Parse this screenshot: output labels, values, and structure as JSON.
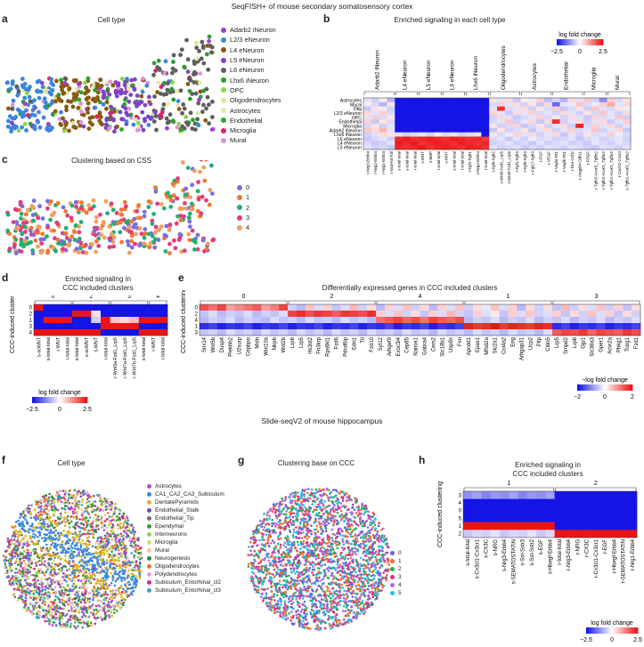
{
  "title_top": "SeqFISH+ of mouse secondary somatosensory cortex",
  "title_mid": "Slide-seqV2 of mouse hippocampus",
  "panels": {
    "a": {
      "label": "a",
      "title": "Cell type"
    },
    "b": {
      "label": "b",
      "title": "Enriched signaling in each cell type"
    },
    "c": {
      "label": "c",
      "title": "Clustering based on CSS"
    },
    "d": {
      "label": "d",
      "title_line1": "Enriched signaling in",
      "title_line2": "CCC included clusters"
    },
    "e": {
      "label": "e",
      "title": "Differentially expressed genes in CCC included clusters"
    },
    "f": {
      "label": "f",
      "title": "Cell type"
    },
    "g": {
      "label": "g",
      "title": "Clustering base on CCC"
    },
    "h": {
      "label": "h",
      "title_line1": "Enriched signaling in",
      "title_line2": "CCC included clusters"
    }
  },
  "legend_a": [
    {
      "label": "Adarb2 iNeuron",
      "color": "#9b3fd0"
    },
    {
      "label": "L2/3 eNeuron",
      "color": "#3c84e0"
    },
    {
      "label": "L4 eNeuron",
      "color": "#8a5a10"
    },
    {
      "label": "L5 eNeuron",
      "color": "#7d42c8"
    },
    {
      "label": "L6 eNeuron",
      "color": "#5e5e5e"
    },
    {
      "label": "Lhx6 iNeuron",
      "color": "#2e9c2e"
    },
    {
      "label": "OPC",
      "color": "#88d848"
    },
    {
      "label": "Oligodendrocytes",
      "color": "#d8e89a"
    },
    {
      "label": "Astrocytes",
      "color": "#e8e8a8"
    },
    {
      "label": "Endothelial",
      "color": "#2ea62e"
    },
    {
      "label": "Microglia",
      "color": "#e02060"
    },
    {
      "label": "Mural",
      "color": "#e090e0"
    }
  ],
  "legend_c": [
    {
      "label": "0",
      "color": "#7a6ee0"
    },
    {
      "label": "1",
      "color": "#f07830"
    },
    {
      "label": "2",
      "color": "#20b070"
    },
    {
      "label": "3",
      "color": "#e03c80"
    },
    {
      "label": "4",
      "color": "#f0a060"
    }
  ],
  "legend_f": [
    {
      "label": "Astrocytes",
      "color": "#c040e0"
    },
    {
      "label": "CA1_CA2_CA3_Subiculum",
      "color": "#3a88e0"
    },
    {
      "label": "DentatePyramids",
      "color": "#e0b020"
    },
    {
      "label": "Endothelial_Stalk",
      "color": "#7848c0"
    },
    {
      "label": "Endothelial_Tip",
      "color": "#707070"
    },
    {
      "label": "Ependymal",
      "color": "#30a030"
    },
    {
      "label": "Interneurons",
      "color": "#90d050"
    },
    {
      "label": "Microglia",
      "color": "#d0e070"
    },
    {
      "label": "Mural",
      "color": "#f0c890"
    },
    {
      "label": "Neurogenesis",
      "color": "#209040"
    },
    {
      "label": "Oligodendrocytes",
      "color": "#f07020"
    },
    {
      "label": "Polydendrocytes",
      "color": "#e0a0e0"
    },
    {
      "label": "Subiculum_Entorhinal_cl2",
      "color": "#e020a0"
    },
    {
      "label": "Subiculum_Entorhinal_cl3",
      "color": "#40a0c0"
    }
  ],
  "legend_g": [
    {
      "label": "0",
      "color": "#6a60e0"
    },
    {
      "label": "1",
      "color": "#f07028"
    },
    {
      "label": "2",
      "color": "#20b060"
    },
    {
      "label": "3",
      "color": "#e03080"
    },
    {
      "label": "4",
      "color": "#b068e0"
    },
    {
      "label": "5",
      "color": "#20c0e0"
    }
  ],
  "heatmap_b": {
    "colorbar_title": "log fold change",
    "colorbar_ticks": [
      "−2.5",
      "0",
      "2.5"
    ],
    "groups": [
      "Adarb2 iNeuron",
      "L4 eNeuron",
      "L5 eNeuron",
      "L6 eNeuron",
      "Lhx6 iNeuron",
      "Oligodendrocytes",
      "Astrocytes",
      "Endothelial",
      "Microglia",
      "Mural"
    ],
    "rows": [
      "Astrocytes",
      "Mural",
      "Olig",
      "L2/3 eNeuron",
      "OPC",
      "Endothelial",
      "Microglia",
      "Adarb2 iNeuron",
      "Lhx6 iNeuron",
      "L6 eNeuron",
      "L4 eNeuron",
      "L5 eNeuron"
    ],
    "cols": [
      "r-Nrg3-Erbb4",
      "r-Nrg2-Erbb4",
      "r-Nrg1-Erbb4",
      "r-total-Kit-Kitl",
      "s-total-total",
      "s-total-total",
      "r-total-total",
      "s-WNT",
      "s-BMP",
      "r-total-total",
      "s-WNT",
      "s-total-total",
      "r-total-total",
      "r-Fgf1-Fgfr1",
      "s-Nrg2-Erbb4",
      "r-total-total",
      "r-Fgf9-Fgfr2",
      "s-Wnt5-Fzd1_Lrp5",
      "s-Wnt6-Fzd1_Lrp5",
      "r-Fgf1-Fgfr3",
      "r-Fgf9-Fgfr3",
      "r-Fgf17-Fgfr3",
      "r-EGF",
      "r-VEGF",
      "r-Vegfa-Flt1",
      "r-Vegfb-Flt1",
      "r-Il34-Csf1r",
      "r-Angptl4-Cdh11",
      "r-PDGF",
      "r-Tgfb3-Acvrl1_Tgfbr2",
      "r-Tgfb2-Acvrl1_Tgfbr2",
      "r-Tgfb1-Acvrl1_Tgfbr2",
      "r-Cxcl12-Cxcr4",
      "s-Tgfb1-Acvrl1_Tgfbr2"
    ],
    "values": [
      [
        -0.3,
        -0.5,
        0.2,
        -0.8,
        -2.5,
        -2.5,
        -2.5,
        -2.5,
        -2.5,
        -2.5,
        -2.5,
        -2.5,
        -2.5,
        -2.5,
        -2.5,
        -2.5,
        0.3,
        -0.3,
        0.4,
        -0.6,
        0.2,
        -0.2,
        0.5,
        -0.7,
        -0.4,
        -0.8,
        0.4,
        -0.3,
        0.6,
        -0.5,
        -1.2,
        0.5,
        -0.4,
        0.3
      ],
      [
        0.2,
        -0.4,
        -0.8,
        0.3,
        -2.5,
        -2.5,
        -2.5,
        -2.5,
        -2.5,
        -2.5,
        -2.5,
        -2.5,
        -2.5,
        -2.5,
        -2.5,
        -2.5,
        -0.4,
        0.5,
        -0.3,
        0.4,
        -0.5,
        0.3,
        -0.6,
        0.4,
        -1.6,
        -0.3,
        -0.2,
        0.6,
        -0.4,
        -0.2,
        0.5,
        0.9,
        -0.3,
        0.4
      ],
      [
        -0.6,
        0.3,
        -0.2,
        -0.5,
        -2.5,
        -2.5,
        -2.5,
        -2.5,
        -2.5,
        -2.5,
        -2.5,
        -2.5,
        -2.5,
        -2.5,
        -2.5,
        -2.5,
        -0.3,
        2.2,
        -0.4,
        -0.3,
        0.4,
        -0.5,
        0.3,
        -0.4,
        0.5,
        -0.6,
        -0.4,
        0.3,
        -0.5,
        0.6,
        -0.3,
        -0.4,
        0.3,
        -0.2
      ],
      [
        0.4,
        -0.3,
        0.5,
        -0.4,
        -2.5,
        -2.5,
        -2.5,
        -2.5,
        -2.5,
        -2.5,
        -2.5,
        -2.5,
        -2.5,
        -2.5,
        -2.5,
        -2.5,
        0.5,
        -0.3,
        -0.6,
        0.4,
        -0.3,
        0.5,
        -0.4,
        -0.3,
        -0.5,
        0.4,
        -0.3,
        -0.5,
        0.3,
        -0.4,
        0.6,
        -0.3,
        -0.5,
        0.4
      ],
      [
        -0.3,
        0.5,
        -0.4,
        0.3,
        -2.5,
        -2.5,
        -2.5,
        -2.5,
        -2.5,
        -2.5,
        -2.5,
        -2.5,
        -2.5,
        -2.5,
        -2.5,
        -2.5,
        -0.5,
        0.4,
        -0.3,
        -0.6,
        -0.4,
        -0.3,
        0.5,
        -0.4,
        0.3,
        -0.5,
        0.4,
        -0.3,
        -0.6,
        0.5,
        -0.4,
        -0.3,
        0.6,
        -0.5
      ],
      [
        0.5,
        -0.6,
        0.3,
        -0.4,
        -2.5,
        -2.5,
        -2.5,
        -2.5,
        -2.5,
        -2.5,
        -2.5,
        -2.5,
        -2.5,
        -2.5,
        -2.5,
        -2.5,
        -0.4,
        -0.3,
        0.6,
        -0.5,
        -0.3,
        0.4,
        -0.6,
        0.4,
        2.2,
        -0.5,
        -0.3,
        0.4,
        -0.5,
        -0.3,
        0.4,
        -0.6,
        -0.3,
        0.5
      ],
      [
        -0.4,
        0.3,
        -0.5,
        -0.3,
        -2.5,
        -2.5,
        -2.5,
        -2.5,
        -2.5,
        -2.5,
        -2.5,
        -2.5,
        -2.5,
        -2.5,
        -2.5,
        -2.5,
        0.3,
        -0.5,
        -0.4,
        0.5,
        -0.6,
        -0.4,
        0.3,
        -0.5,
        -0.3,
        0.4,
        -0.5,
        2.3,
        -0.4,
        0.5,
        -0.3,
        0.4,
        -0.5,
        -0.3
      ],
      [
        0.6,
        0.4,
        0.8,
        -0.3,
        -2.5,
        -2.5,
        -2.5,
        -2.5,
        -2.5,
        -2.5,
        -2.5,
        -2.5,
        -2.5,
        -2.5,
        -2.5,
        -2.5,
        -0.6,
        0.3,
        -0.5,
        -0.4,
        0.3,
        -0.6,
        -0.3,
        0.4,
        -0.5,
        -0.3,
        0.5,
        -0.4,
        -0.3,
        0.6,
        -0.5,
        -0.3,
        0.4,
        -0.6
      ],
      [
        -0.5,
        -0.3,
        0.4,
        0.3,
        -0.3,
        -0.5,
        -0.4,
        -0.3,
        -0.5,
        -0.2,
        -0.4,
        -0.3,
        -0.5,
        -0.4,
        -0.3,
        -2.5,
        0.3,
        -0.4,
        -0.2,
        0.5,
        -0.3,
        0.4,
        -0.5,
        -0.3,
        0.4,
        -0.6,
        -0.3,
        -0.5,
        0.3,
        -0.4,
        -0.3,
        0.5,
        -0.2,
        -0.4
      ],
      [
        -0.6,
        -0.4,
        -0.3,
        -0.5,
        2.3,
        2.4,
        2.2,
        2.3,
        2.4,
        2.3,
        2.2,
        2.4,
        2.3,
        2.2,
        2.3,
        2.1,
        -0.4,
        -0.3,
        -0.6,
        -0.3,
        -0.5,
        -0.2,
        -0.4,
        -0.3,
        -0.5,
        -0.4,
        -0.3,
        -0.6,
        -0.4,
        -0.3,
        -0.5,
        -0.4,
        -0.3,
        -0.5
      ],
      [
        -0.4,
        -0.6,
        -0.5,
        -0.3,
        2.4,
        2.3,
        2.4,
        2.2,
        2.3,
        2.4,
        2.3,
        2.2,
        2.4,
        2.3,
        2.2,
        2.3,
        -0.5,
        -0.4,
        -0.3,
        -0.5,
        -0.4,
        -0.6,
        -0.3,
        -0.5,
        -0.4,
        -0.3,
        -0.5,
        -0.4,
        -0.6,
        -0.3,
        -0.4,
        -0.5,
        -0.3,
        -0.4
      ],
      [
        -0.3,
        -0.5,
        -0.4,
        -0.6,
        2.3,
        2.2,
        2.3,
        2.4,
        2.2,
        2.3,
        2.4,
        2.3,
        2.2,
        2.4,
        2.3,
        2.2,
        -0.3,
        -0.5,
        -0.4,
        -0.3,
        -0.6,
        -0.4,
        -0.5,
        -0.3,
        -0.4,
        -0.5,
        -0.3,
        -0.4,
        -0.5,
        -0.6,
        -0.3,
        -0.4,
        -0.5,
        -0.3
      ]
    ]
  },
  "heatmap_d": {
    "ylabel": "CCC-induced clustering",
    "group_labels": [
      "0",
      "2",
      "3",
      "4"
    ],
    "rows": [
      "0",
      "2",
      "1",
      "3",
      "4"
    ],
    "cols": [
      "s-ncWNT",
      "s-total-total",
      "r-WNT",
      "r-total-total",
      "s-total-total",
      "s-ncWNT",
      "s-WNT",
      "r-total-total",
      "r-Wnt3a-Fzd1_Lrp5",
      "r-Wnt7a-Fzd1_Lrp5",
      "r-Wnt7b-Fzd1_Lrp5",
      "s-total-total",
      "r-WNT",
      "r-total-total"
    ],
    "values": [
      [
        2.5,
        -2.5,
        -2.5,
        -2.5,
        -2.5,
        -2.5,
        -2.5,
        -2.5,
        -2.5,
        -2.5,
        -2.5,
        -2.5,
        -2.5,
        -2.5
      ],
      [
        -2.5,
        -2.5,
        -2.5,
        -2.5,
        2.5,
        2.5,
        0.3,
        -2.5,
        -2.5,
        -2.5,
        -2.5,
        -2.5,
        -2.5,
        -2.5
      ],
      [
        -2.5,
        2.5,
        2.5,
        2.5,
        -2.5,
        -2.5,
        -0.5,
        2.5,
        0.6,
        0.4,
        0.7,
        2.5,
        2.5,
        2.5
      ],
      [
        -2.5,
        -2.5,
        -2.5,
        -2.5,
        -2.5,
        -2.5,
        -2.5,
        2.5,
        2.5,
        2.5,
        2.5,
        -2.5,
        -2.5,
        -2.5
      ],
      [
        2.5,
        2.5,
        2.5,
        2.5,
        2.5,
        2.5,
        2.5,
        -2.5,
        -2.5,
        -2.5,
        -2.5,
        2.5,
        2.5,
        2.5
      ]
    ],
    "colorbar_title": "log fold change",
    "colorbar_ticks": [
      "−2.5",
      "0",
      "2.5"
    ]
  },
  "heatmap_e": {
    "ylabel": "CCC-induced clustering",
    "group_labels": [
      "0",
      "2",
      "4",
      "1",
      "3"
    ],
    "rows": [
      "0",
      "2",
      "4",
      "1",
      "3"
    ],
    "cols": [
      "Snx14",
      "Wnt5b",
      "Dusp4",
      "Plekhh2",
      "U2surp",
      "Cepbpo",
      "Msln",
      "Wnt10a",
      "Nlrp6",
      "Wnt2b",
      "Lrp6",
      "Lrp5",
      "Hs3st2",
      "Fn3krp",
      "Rps6kl1",
      "Fzd6",
      "Pdcd6ip",
      "Edn1",
      "Ttl",
      "Fzd10",
      "Syt12",
      "Arhgef9",
      "Exoc3l4",
      "Cep85",
      "Nanos1",
      "Gabra4",
      "Cers2",
      "Slc18b1",
      "Usp9x",
      "Fxn",
      "Apcdd1",
      "Epas1",
      "Mfsd2a",
      "Slc2a1",
      "Col4a2",
      "Eng",
      "Arhgap31",
      "Ucp2",
      "Pltp",
      "Cldn5",
      "Lrp5",
      "Smpd2",
      "Lrp6",
      "Gjp1",
      "Slc38a3",
      "Gper1",
      "Acvr2a",
      "Phkg1",
      "Tcirg1",
      "Fzd1"
    ],
    "values": [
      [
        1.5,
        1.2,
        1.6,
        0.8,
        1.0,
        1.2,
        1.4,
        0.8,
        1.1,
        1.6,
        -0.4,
        -0.6,
        0.5,
        -0.3,
        0.4,
        -0.5,
        -0.3,
        0.6,
        -0.4,
        0.3,
        -0.6,
        0.4,
        -0.3,
        0.5,
        -0.4,
        0.3,
        -0.6,
        0.4,
        -0.3,
        0.5,
        -0.4,
        0.3,
        -0.2,
        0.5,
        -0.3,
        0.4,
        -0.6,
        0.3,
        -0.4,
        0.3,
        -0.5,
        0.6,
        -0.4,
        0.3,
        -0.3,
        0.5,
        -0.4,
        0.4,
        -0.5,
        0.3
      ],
      [
        -0.5,
        -0.3,
        -0.6,
        -0.4,
        -0.5,
        -0.3,
        -0.6,
        -0.4,
        -0.5,
        -0.3,
        1.6,
        1.8,
        1.5,
        1.7,
        1.6,
        1.4,
        1.7,
        1.6,
        1.5,
        1.8,
        0.4,
        -0.3,
        0.5,
        -0.4,
        0.3,
        -0.5,
        0.4,
        -0.3,
        0.6,
        -0.4,
        -0.5,
        0.4,
        -0.3,
        0.2,
        -0.5,
        0.4,
        -0.3,
        0.5,
        -0.4,
        -0.3,
        0.4,
        -0.5,
        0.3,
        -0.4,
        0.5,
        -0.3,
        0.4,
        -0.5,
        0.3,
        -0.4
      ],
      [
        -0.6,
        -0.4,
        -0.5,
        -0.3,
        -0.6,
        -0.4,
        -0.5,
        -0.6,
        -0.3,
        -0.5,
        -0.4,
        -0.6,
        -0.3,
        -0.5,
        -0.4,
        -0.6,
        -0.3,
        -0.5,
        -0.4,
        -0.6,
        1.2,
        1.4,
        1.6,
        1.3,
        1.5,
        1.2,
        1.6,
        1.4,
        1.3,
        1.5,
        -0.6,
        -0.4,
        -0.5,
        -0.3,
        -0.6,
        -0.4,
        -0.5,
        -0.3,
        -0.6,
        -0.4,
        -0.5,
        -0.3,
        -0.6,
        -0.4,
        -0.5,
        -0.3,
        -0.6,
        -0.4,
        -0.5,
        -0.3
      ],
      [
        -1.8,
        -1.6,
        -1.9,
        -1.7,
        -1.8,
        -1.6,
        -1.9,
        -1.7,
        -1.8,
        -1.6,
        -1.9,
        -1.7,
        -1.8,
        -1.6,
        -1.9,
        -1.7,
        -1.8,
        -1.6,
        -1.9,
        -1.7,
        -1.8,
        -1.6,
        -1.9,
        -1.7,
        -1.8,
        -1.6,
        -1.9,
        -1.7,
        -1.8,
        -1.6,
        1.9,
        1.7,
        1.8,
        2.0,
        1.7,
        1.9,
        1.8,
        1.7,
        1.9,
        1.8,
        -1.8,
        -1.6,
        -1.9,
        -1.7,
        -1.8,
        -1.6,
        -1.9,
        -1.7,
        -1.8,
        -1.6
      ],
      [
        -0.5,
        -0.4,
        -0.6,
        -0.3,
        -0.5,
        -0.4,
        -0.6,
        -0.3,
        -0.5,
        -0.4,
        -0.6,
        -0.3,
        -0.5,
        -0.4,
        -0.6,
        -0.3,
        -0.5,
        -0.4,
        -0.6,
        -0.3,
        -0.5,
        -0.4,
        -0.6,
        -0.3,
        -0.5,
        -0.4,
        -0.6,
        -0.3,
        -0.5,
        -0.4,
        -0.6,
        -0.3,
        -0.5,
        -0.4,
        -0.6,
        -0.3,
        -0.5,
        -0.4,
        -0.6,
        -0.3,
        1.4,
        1.6,
        1.5,
        1.7,
        1.3,
        1.6,
        1.5,
        1.4,
        1.7,
        1.5
      ]
    ],
    "colorbar_title": "−log fold change",
    "colorbar_ticks": [
      "−2",
      "0",
      "2"
    ]
  },
  "heatmap_h": {
    "ylabel": "CCC-induced clustering",
    "group_labels": [
      "1",
      "2"
    ],
    "rows": [
      "3",
      "4",
      "0",
      "5",
      "1",
      "2"
    ],
    "cols": [
      "s-total-total",
      "s-Cx3cl1-Cx3cr1",
      "s-CX3C",
      "s-NRG",
      "s-Nrg3-Erbb4",
      "s-SEMATOSTATIN",
      "s-Sst-Sstr3",
      "s-Sst-Sstr2",
      "s-EGF",
      "s-Hbegf-Erbb4",
      "r-total-total",
      "r-Nrg3-Erbb4",
      "r-NRG",
      "r-CX3C",
      "r-Cx3cl1-Cx3cr1",
      "r-EGF",
      "r-Hbegf-Erbb4",
      "r-SEMATOSTATIN",
      "r-Nrg1-Erbb4"
    ],
    "values": [
      [
        -1.2,
        -1.0,
        -1.3,
        -1.1,
        -1.2,
        -1.0,
        -1.3,
        -1.1,
        -1.2,
        -1.0,
        -2.5,
        -2.5,
        -2.5,
        -2.5,
        -2.5,
        -2.5,
        -2.5,
        -2.5,
        -2.5
      ],
      [
        -2.5,
        -2.5,
        -2.5,
        -2.5,
        -2.5,
        -2.5,
        -2.5,
        -2.5,
        -2.5,
        -2.5,
        -2.5,
        -2.5,
        -2.5,
        -2.5,
        -2.5,
        -2.5,
        -2.5,
        -2.5,
        -2.5
      ],
      [
        -2.5,
        -2.5,
        -2.5,
        -2.5,
        -2.5,
        -2.5,
        -2.5,
        -2.5,
        -2.5,
        -2.5,
        -2.5,
        -2.5,
        -2.5,
        -2.5,
        -2.5,
        -2.5,
        -2.5,
        -2.5,
        -2.5
      ],
      [
        -2.5,
        -2.5,
        -2.5,
        -2.5,
        -2.5,
        -2.5,
        -2.5,
        -2.5,
        -2.5,
        -2.5,
        -2.5,
        -2.5,
        -2.5,
        -2.5,
        -2.5,
        -2.5,
        -2.5,
        -2.5,
        -2.5
      ],
      [
        2.5,
        2.5,
        2.5,
        2.5,
        2.5,
        2.5,
        2.5,
        2.5,
        2.5,
        2.5,
        -2.5,
        -2.5,
        -2.5,
        -2.5,
        -2.5,
        -2.5,
        -2.5,
        -2.5,
        -2.5
      ],
      [
        -0.6,
        -0.4,
        -0.5,
        -0.3,
        -0.6,
        -0.4,
        -0.5,
        -0.3,
        -0.6,
        -0.4,
        2.5,
        2.5,
        2.5,
        2.5,
        2.5,
        2.5,
        2.5,
        2.5,
        2.5
      ]
    ],
    "colorbar_title": "log fold change",
    "colorbar_ticks": [
      "−2.5",
      "0",
      "2.5"
    ]
  }
}
